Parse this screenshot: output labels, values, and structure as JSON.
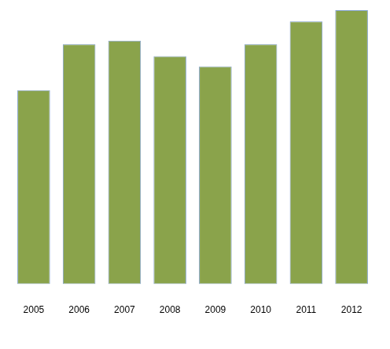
{
  "chart_data": {
    "type": "bar",
    "categories": [
      "2005",
      "2006",
      "2007",
      "2008",
      "2009",
      "2010",
      "2011",
      "2012"
    ],
    "values": [
      70.8,
      87.6,
      88.9,
      83.2,
      79.5,
      87.6,
      95.9,
      100
    ],
    "color": "#8aa34b",
    "ylim": [
      0,
      100
    ],
    "grid": false,
    "tick_labels": "x"
  }
}
